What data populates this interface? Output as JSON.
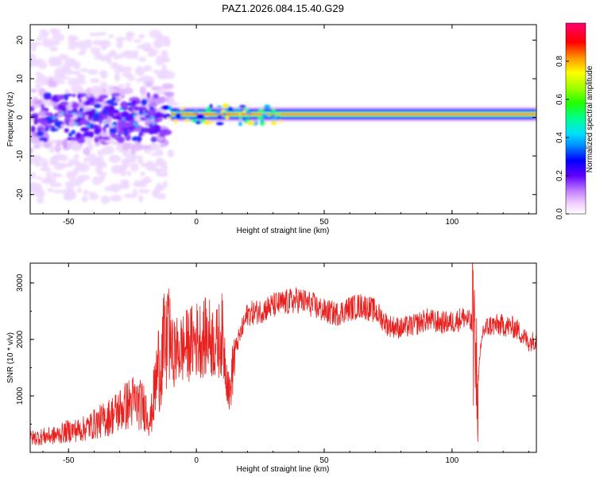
{
  "title": "PAZ1.2026.084.15.40.G29",
  "colors": {
    "snr_line": "#e8201e",
    "axis": "#000000",
    "background": "#ffffff"
  },
  "chart_data": [
    {
      "type": "heatmap",
      "name": "spectrogram",
      "xlabel": "Height of straight line (km)",
      "ylabel": "Frequency (Hz)",
      "xlim": [
        -65,
        133
      ],
      "ylim": [
        -25,
        24
      ],
      "xticks": [
        -50,
        0,
        50,
        100
      ],
      "yticks": [
        -20,
        -10,
        0,
        10,
        20
      ],
      "ridge": {
        "x_start": -10,
        "x_end": 133,
        "frequency_hz": 0.8,
        "description_values": []
      },
      "colorbar": {
        "label": "Normalized spectral amplitude",
        "range": [
          0,
          1
        ],
        "ticks": [
          "0.0",
          "0.2",
          "0.4",
          "0.6",
          "0.8"
        ],
        "tick_values": [
          0.0,
          0.2,
          0.4,
          0.6,
          0.8
        ],
        "colormap": [
          "#ffffff",
          "#ff40ff",
          "#8000ff",
          "#0000ff",
          "#00c0ff",
          "#00ff80",
          "#40ff00",
          "#c0ff00",
          "#ffff00",
          "#ff8000",
          "#ff0000",
          "#ff0060"
        ]
      }
    },
    {
      "type": "line",
      "name": "snr",
      "xlabel": "Height of straight line (km)",
      "ylabel": "SNR (10 * v/v)",
      "xlim": [
        -65,
        133
      ],
      "ylim": [
        0,
        3350
      ],
      "xticks": [
        -50,
        0,
        50,
        100
      ],
      "yticks": [
        1000,
        2000,
        3000
      ],
      "series": [
        {
          "name": "SNR",
          "x": [
            -65,
            -60,
            -55,
            -50,
            -45,
            -40,
            -35,
            -30,
            -25,
            -20,
            -18,
            -15,
            -12,
            -10,
            -5,
            0,
            5,
            8,
            10,
            13,
            15,
            18,
            20,
            25,
            30,
            35,
            40,
            45,
            50,
            55,
            60,
            65,
            70,
            75,
            80,
            85,
            90,
            95,
            100,
            105,
            108,
            110,
            112,
            115,
            120,
            125,
            130,
            133
          ],
          "values": [
            250,
            280,
            300,
            380,
            400,
            500,
            600,
            750,
            900,
            800,
            550,
            1500,
            1900,
            1750,
            1850,
            2000,
            2050,
            1900,
            2100,
            1000,
            1800,
            2200,
            2450,
            2500,
            2600,
            2650,
            2700,
            2620,
            2500,
            2450,
            2550,
            2600,
            2500,
            2250,
            2200,
            2250,
            2350,
            2300,
            2300,
            2400,
            2250,
            1200,
            2150,
            2250,
            2250,
            2200,
            1950,
            2000
          ]
        }
      ]
    }
  ]
}
